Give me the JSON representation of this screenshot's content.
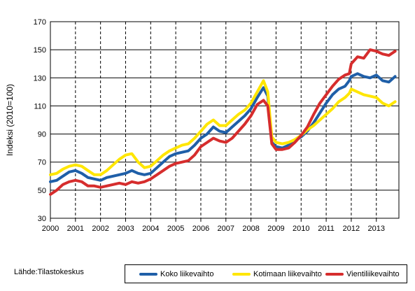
{
  "chart_data": {
    "type": "line",
    "ylabel": "Indeksi (2010=100)",
    "xlabel": "",
    "title": "",
    "ylim": [
      30,
      170
    ],
    "xlim": [
      2000,
      2013.9
    ],
    "y_ticks": [
      "30",
      "50",
      "70",
      "90",
      "110",
      "130",
      "150",
      "170"
    ],
    "x_ticks": [
      "2000",
      "2001",
      "2002",
      "2003",
      "2004",
      "2005",
      "2006",
      "2007",
      "2008",
      "2009",
      "2010",
      "2011",
      "2012",
      "2013"
    ],
    "grid": "vertical-dashed-and-horizontal-solid",
    "legend": "bottom",
    "series": [
      {
        "name": "Koko liikevaihto",
        "color": "#1f5fa8",
        "points": [
          [
            2000,
            56
          ],
          [
            2000.25,
            57
          ],
          [
            2000.5,
            60
          ],
          [
            2000.75,
            63
          ],
          [
            2001,
            64
          ],
          [
            2001.25,
            62
          ],
          [
            2001.5,
            59
          ],
          [
            2001.75,
            58
          ],
          [
            2002,
            57
          ],
          [
            2002.25,
            59
          ],
          [
            2002.5,
            60
          ],
          [
            2002.75,
            61
          ],
          [
            2003,
            62
          ],
          [
            2003.25,
            64
          ],
          [
            2003.5,
            62
          ],
          [
            2003.75,
            61
          ],
          [
            2004,
            62
          ],
          [
            2004.25,
            66
          ],
          [
            2004.5,
            70
          ],
          [
            2004.75,
            74
          ],
          [
            2005,
            76
          ],
          [
            2005.25,
            77
          ],
          [
            2005.5,
            78
          ],
          [
            2005.75,
            82
          ],
          [
            2006,
            87
          ],
          [
            2006.25,
            90
          ],
          [
            2006.5,
            95
          ],
          [
            2006.75,
            92
          ],
          [
            2007,
            91
          ],
          [
            2007.25,
            95
          ],
          [
            2007.5,
            99
          ],
          [
            2007.75,
            103
          ],
          [
            2008,
            108
          ],
          [
            2008.25,
            116
          ],
          [
            2008.5,
            123
          ],
          [
            2008.67,
            117
          ],
          [
            2008.83,
            84
          ],
          [
            2009,
            81
          ],
          [
            2009.25,
            80
          ],
          [
            2009.5,
            82
          ],
          [
            2009.75,
            85
          ],
          [
            2010,
            88
          ],
          [
            2010.25,
            92
          ],
          [
            2010.5,
            98
          ],
          [
            2010.75,
            105
          ],
          [
            2011,
            112
          ],
          [
            2011.25,
            118
          ],
          [
            2011.5,
            122
          ],
          [
            2011.75,
            124
          ],
          [
            2011.92,
            128
          ],
          [
            2012,
            131
          ],
          [
            2012.25,
            133
          ],
          [
            2012.5,
            131
          ],
          [
            2012.75,
            130
          ],
          [
            2013,
            132
          ],
          [
            2013.25,
            128
          ],
          [
            2013.5,
            127
          ],
          [
            2013.75,
            131
          ]
        ]
      },
      {
        "name": "Kotimaan liikevaihto",
        "color": "#ffe600",
        "points": [
          [
            2000,
            61
          ],
          [
            2000.25,
            62
          ],
          [
            2000.5,
            65
          ],
          [
            2000.75,
            67
          ],
          [
            2001,
            68
          ],
          [
            2001.25,
            67
          ],
          [
            2001.5,
            64
          ],
          [
            2001.75,
            61
          ],
          [
            2002,
            61
          ],
          [
            2002.25,
            64
          ],
          [
            2002.5,
            68
          ],
          [
            2002.75,
            72
          ],
          [
            2003,
            75
          ],
          [
            2003.25,
            76
          ],
          [
            2003.5,
            70
          ],
          [
            2003.75,
            66
          ],
          [
            2004,
            67
          ],
          [
            2004.25,
            71
          ],
          [
            2004.5,
            75
          ],
          [
            2004.75,
            78
          ],
          [
            2005,
            80
          ],
          [
            2005.25,
            82
          ],
          [
            2005.5,
            83
          ],
          [
            2005.75,
            87
          ],
          [
            2006,
            92
          ],
          [
            2006.25,
            97
          ],
          [
            2006.5,
            100
          ],
          [
            2006.75,
            96
          ],
          [
            2007,
            96
          ],
          [
            2007.25,
            100
          ],
          [
            2007.5,
            104
          ],
          [
            2007.75,
            107
          ],
          [
            2008,
            112
          ],
          [
            2008.25,
            120
          ],
          [
            2008.5,
            128
          ],
          [
            2008.67,
            120
          ],
          [
            2008.83,
            88
          ],
          [
            2009,
            84
          ],
          [
            2009.25,
            83
          ],
          [
            2009.5,
            84
          ],
          [
            2009.75,
            86
          ],
          [
            2010,
            89
          ],
          [
            2010.25,
            93
          ],
          [
            2010.5,
            96
          ],
          [
            2010.75,
            100
          ],
          [
            2011,
            104
          ],
          [
            2011.25,
            108
          ],
          [
            2011.5,
            113
          ],
          [
            2011.75,
            116
          ],
          [
            2011.92,
            119
          ],
          [
            2012,
            122
          ],
          [
            2012.25,
            120
          ],
          [
            2012.5,
            118
          ],
          [
            2012.75,
            117
          ],
          [
            2013,
            116
          ],
          [
            2013.25,
            112
          ],
          [
            2013.5,
            110
          ],
          [
            2013.75,
            113
          ]
        ]
      },
      {
        "name": "Vientiliikevaihto",
        "color": "#d62d2d",
        "points": [
          [
            2000,
            47
          ],
          [
            2000.25,
            50
          ],
          [
            2000.5,
            54
          ],
          [
            2000.75,
            56
          ],
          [
            2001,
            57
          ],
          [
            2001.25,
            56
          ],
          [
            2001.5,
            53
          ],
          [
            2001.75,
            53
          ],
          [
            2002,
            52
          ],
          [
            2002.25,
            53
          ],
          [
            2002.5,
            54
          ],
          [
            2002.75,
            55
          ],
          [
            2003,
            54
          ],
          [
            2003.25,
            56
          ],
          [
            2003.5,
            55
          ],
          [
            2003.75,
            56
          ],
          [
            2004,
            58
          ],
          [
            2004.25,
            61
          ],
          [
            2004.5,
            64
          ],
          [
            2004.75,
            67
          ],
          [
            2005,
            69
          ],
          [
            2005.25,
            70
          ],
          [
            2005.5,
            71
          ],
          [
            2005.75,
            75
          ],
          [
            2006,
            81
          ],
          [
            2006.25,
            84
          ],
          [
            2006.5,
            87
          ],
          [
            2006.75,
            85
          ],
          [
            2007,
            84
          ],
          [
            2007.25,
            87
          ],
          [
            2007.5,
            92
          ],
          [
            2007.75,
            97
          ],
          [
            2008,
            103
          ],
          [
            2008.25,
            111
          ],
          [
            2008.5,
            114
          ],
          [
            2008.67,
            110
          ],
          [
            2008.83,
            83
          ],
          [
            2009,
            79
          ],
          [
            2009.25,
            79
          ],
          [
            2009.5,
            80
          ],
          [
            2009.75,
            84
          ],
          [
            2010,
            89
          ],
          [
            2010.25,
            95
          ],
          [
            2010.5,
            104
          ],
          [
            2010.75,
            112
          ],
          [
            2011,
            118
          ],
          [
            2011.25,
            124
          ],
          [
            2011.5,
            129
          ],
          [
            2011.75,
            132
          ],
          [
            2011.92,
            133
          ],
          [
            2012,
            140
          ],
          [
            2012.25,
            145
          ],
          [
            2012.5,
            144
          ],
          [
            2012.75,
            150
          ],
          [
            2013,
            149
          ],
          [
            2013.25,
            147
          ],
          [
            2013.5,
            146
          ],
          [
            2013.75,
            149
          ]
        ]
      }
    ]
  },
  "source_note": "Lähde:Tilastokeskus"
}
